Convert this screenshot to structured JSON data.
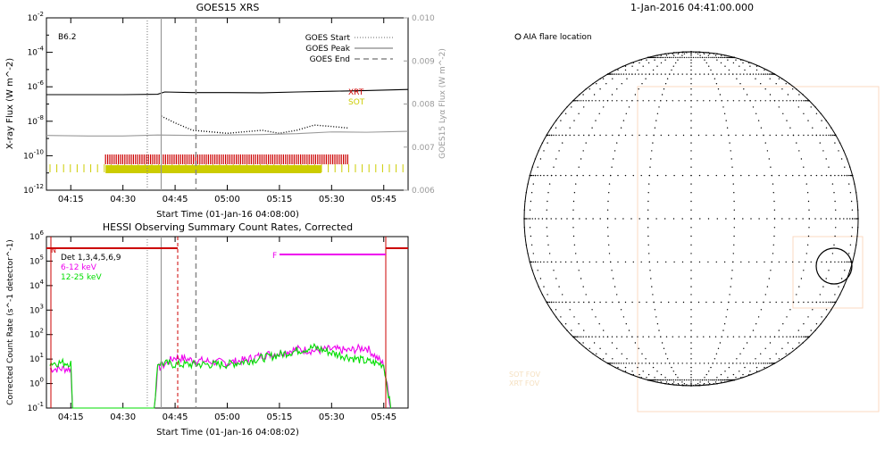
{
  "chart_data": [
    {
      "type": "line",
      "title": "GOES15 XRS",
      "xlabel": "Start Time (01-Jan-16 04:08:00)",
      "ylabel": "X-ray Flux (W m^-2)",
      "ylabel_right": "GOES15 Lyα Flux (W m^-2)",
      "class_label": "B6.2",
      "x_ticks": [
        "04:15",
        "04:30",
        "04:45",
        "05:00",
        "05:15",
        "05:30",
        "05:45"
      ],
      "y_ticks_exponents": [
        -12,
        -10,
        -8,
        -6,
        -4,
        -2
      ],
      "y_right_ticks": [
        "0.006",
        "0.007",
        "0.008",
        "0.009",
        "0.010"
      ],
      "xlim": [
        "04:08",
        "05:52"
      ],
      "ylim": [
        1e-12,
        0.01
      ],
      "y_scale": "log",
      "legend": [
        {
          "label": "GOES Start",
          "style": "dotted",
          "time": "04:37"
        },
        {
          "label": "GOES Peak",
          "style": "solid",
          "time": "04:41"
        },
        {
          "label": "GOES End",
          "style": "dashed",
          "time": "04:51"
        }
      ],
      "legend_position": "top-right",
      "instrument_labels": [
        {
          "label": "XRT",
          "color": "#cc0000"
        },
        {
          "label": "SOT",
          "color": "#cccc00"
        }
      ],
      "series": [
        {
          "name": "",
          "color": "#000000",
          "style": "solid",
          "x": [
            "04:08",
            "04:30",
            "04:40",
            "04:42",
            "04:50",
            "05:00",
            "05:10",
            "05:20",
            "05:30",
            "05:40",
            "05:52"
          ],
          "y": [
            3.5e-07,
            3.5e-07,
            3.7e-07,
            5e-07,
            4.6e-07,
            4.6e-07,
            4.5e-07,
            5e-07,
            5.5e-07,
            6e-07,
            7e-07
          ]
        },
        {
          "name": "",
          "color": "#000000",
          "style": "dotted",
          "x": [
            "04:41",
            "04:45",
            "04:50",
            "05:00",
            "05:10",
            "05:15",
            "05:20",
            "05:25",
            "05:30",
            "05:35"
          ],
          "y": [
            2e-08,
            8e-09,
            3e-09,
            2e-09,
            3e-09,
            2e-09,
            3e-09,
            6e-09,
            5e-09,
            4e-09
          ]
        },
        {
          "name": "",
          "color": "#999999",
          "style": "solid",
          "x": [
            "04:08",
            "04:20",
            "04:30",
            "04:40",
            "04:50",
            "05:00",
            "05:10",
            "05:20",
            "05:30",
            "05:40",
            "05:52"
          ],
          "y": [
            1.5e-09,
            1.4e-09,
            1.4e-09,
            1.6e-09,
            1.5e-09,
            1.6e-09,
            1.7e-09,
            1.9e-09,
            2.4e-09,
            2.3e-09,
            2.6e-09
          ]
        }
      ],
      "bars": [
        {
          "name": "XRT",
          "color": "#cc0000",
          "start": "04:25",
          "end": "05:35"
        },
        {
          "name": "SOT",
          "color": "#cccc00",
          "start": "04:25",
          "end": "05:27"
        }
      ]
    },
    {
      "type": "line",
      "title": "HESSI Observing Summary Count Rates, Corrected",
      "xlabel": "Start Time (01-Jan-16 04:08:02)",
      "ylabel": "Corrected Count Rate (s^-1 detector^-1)",
      "x_ticks": [
        "04:15",
        "04:30",
        "04:45",
        "05:00",
        "05:15",
        "05:30",
        "05:45"
      ],
      "y_ticks_exponents": [
        -1,
        0,
        1,
        2,
        3,
        4,
        5,
        6
      ],
      "xlim": [
        "04:08",
        "05:52"
      ],
      "ylim": [
        0.1,
        1000000.0
      ],
      "y_scale": "log",
      "legend_text": [
        "Det 1,3,4,5,6,9",
        "6-12 keV",
        "12-25 keV"
      ],
      "legend_colors": [
        "#000000",
        "#ee00ee",
        "#00dd00"
      ],
      "flags": [
        {
          "label": "N",
          "color": "#cc0000"
        },
        {
          "label": "F",
          "color": "#ee00ee"
        }
      ],
      "series": [
        {
          "name": "6-12 keV",
          "color": "#ee00ee",
          "x": [
            "04:09",
            "04:15",
            "04:15.5",
            "04:39",
            "04:40",
            "04:42",
            "04:45",
            "04:50",
            "05:00",
            "05:05",
            "05:10",
            "05:15",
            "05:20",
            "05:25",
            "05:30",
            "05:35",
            "05:40",
            "05:45",
            "05:47"
          ],
          "y": [
            4,
            4,
            0.1,
            0.1,
            4,
            6,
            12,
            9,
            7,
            9,
            14,
            18,
            25,
            22,
            25,
            22,
            30,
            6,
            0.1
          ]
        },
        {
          "name": "12-25 keV",
          "color": "#00dd00",
          "x": [
            "04:09",
            "04:15",
            "04:15.5",
            "04:39",
            "04:40",
            "04:45",
            "04:50",
            "05:00",
            "05:05",
            "05:10",
            "05:15",
            "05:20",
            "05:25",
            "05:30",
            "05:35",
            "05:40",
            "05:45",
            "05:47"
          ],
          "y": [
            7,
            7,
            0.1,
            0.1,
            7,
            6,
            6,
            6,
            8,
            11,
            15,
            22,
            30,
            18,
            12,
            8,
            6,
            0.1
          ]
        }
      ]
    },
    {
      "type": "other",
      "title": "1-Jan-2016 04:41:00.000",
      "annotation": "AIA flare location",
      "faint_labels": [
        "SOT FOV",
        "XRT FOV"
      ]
    }
  ]
}
